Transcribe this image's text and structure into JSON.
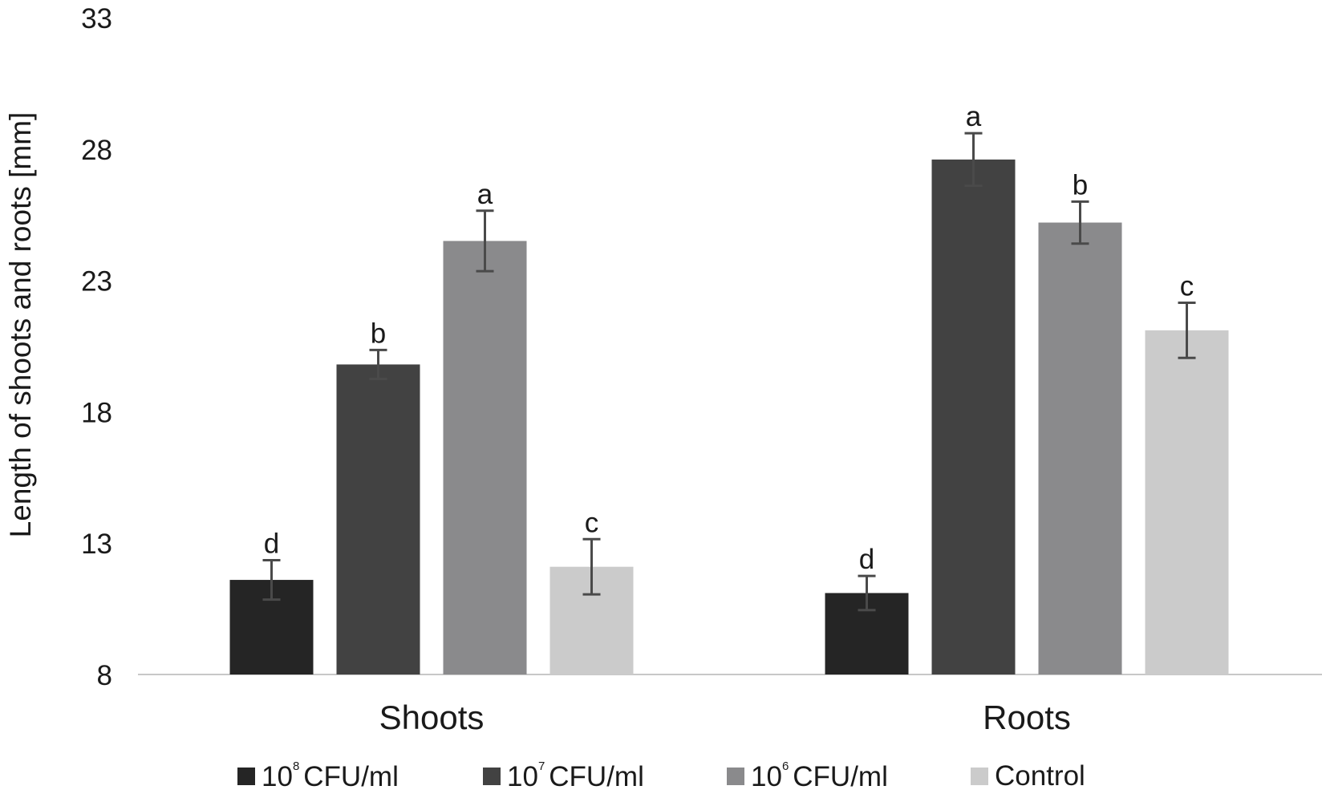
{
  "chart_data": {
    "type": "bar",
    "title": "",
    "xlabel": "",
    "ylabel": "Length of shoots and roots [mm]",
    "ylim": [
      8,
      33
    ],
    "yticks": [
      8,
      13,
      18,
      23,
      28,
      33
    ],
    "categories": [
      "Shoots",
      "Roots"
    ],
    "grid": false,
    "legend_position": "bottom",
    "series": [
      {
        "name": "10^8 CFU/ml",
        "legend": {
          "base": "10",
          "exp": "8",
          "unit": "CFU/ml"
        },
        "color": "#252525",
        "values": [
          11.6,
          11.1
        ],
        "errors": [
          0.75,
          0.65
        ],
        "letters": [
          "d",
          "d"
        ]
      },
      {
        "name": "10^7 CFU/ml",
        "legend": {
          "base": "10",
          "exp": "7",
          "unit": "CFU/ml"
        },
        "color": "#424242",
        "values": [
          19.8,
          27.6
        ],
        "errors": [
          0.55,
          1.0
        ],
        "letters": [
          "b",
          "a"
        ]
      },
      {
        "name": "10^6 CFU/ml",
        "legend": {
          "base": "10",
          "exp": "6",
          "unit": "CFU/ml"
        },
        "color": "#8a8a8c",
        "values": [
          24.5,
          25.2
        ],
        "errors": [
          1.15,
          0.8
        ],
        "letters": [
          "a",
          "b"
        ]
      },
      {
        "name": "Control",
        "legend": {
          "base": "",
          "exp": "",
          "unit": "Control"
        },
        "color": "#cbcbcb",
        "values": [
          12.1,
          21.1
        ],
        "errors": [
          1.05,
          1.05
        ],
        "letters": [
          "c",
          "c"
        ]
      }
    ]
  }
}
